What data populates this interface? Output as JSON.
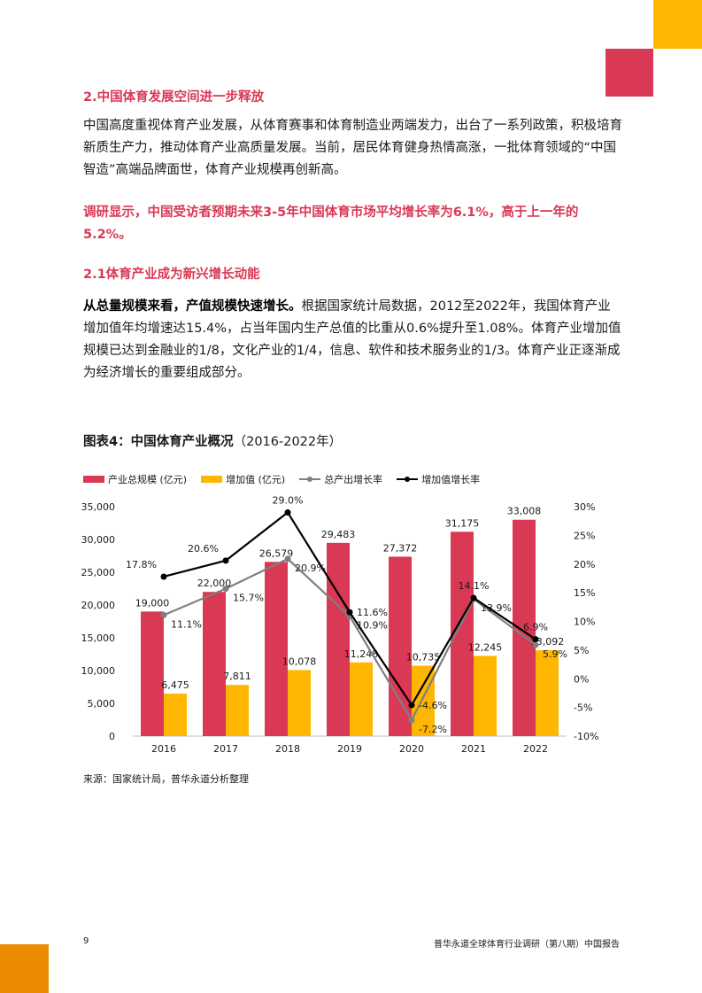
{
  "section": {
    "title": "2.中国体育发展空间进一步释放",
    "intro": "中国高度重视体育产业发展，从体育赛事和体育制造业两端发力，出台了一系列政策，积极培育新质生产力，推动体育产业高质量发展。当前，居民体育健身热情高涨，一批体育领域的“中国智造”高端品牌面世，体育产业规模再创新高。",
    "highlight": "调研显示，中国受访者预期未来3-5年中国体育市场平均增长率为6.1%，高于上一年的5.2%。"
  },
  "subsection": {
    "title": "2.1体育产业成为新兴增长动能",
    "lead_bold": "从总量规模来看，产值规模快速增长。",
    "body": "根据国家统计局数据，2012至2022年，我国体育产业增加值年均增速达15.4%，占当年国内生产总值的比重从0.6%提升至1.08%。体育产业增加值规模已达到金融业的1/8，文化产业的1/4，信息、软件和技术服务业的1/3。体育产业正逐渐成为经济增长的重要组成部分。"
  },
  "figure": {
    "label": "图表4：中国体育产业概况",
    "period": "（2016-2022年）",
    "source": "来源：国家统计局，普华永道分析整理"
  },
  "chart_data": {
    "type": "bar",
    "categories": [
      "2016",
      "2017",
      "2018",
      "2019",
      "2020",
      "2021",
      "2022"
    ],
    "series": [
      {
        "name": "产业总规模 (亿元)",
        "kind": "bar",
        "axis": "left",
        "color": "#D93954",
        "values": [
          19000,
          22000,
          26579,
          29483,
          27372,
          31175,
          33008
        ],
        "labels": [
          "19,000",
          "22,000",
          "26,579",
          "29,483",
          "27,372",
          "31,175",
          "33,008"
        ]
      },
      {
        "name": "增加值 (亿元)",
        "kind": "bar",
        "axis": "left",
        "color": "#FFB600",
        "values": [
          6475,
          7811,
          10078,
          11248,
          10735,
          12245,
          13092
        ],
        "labels": [
          "6,475",
          "7,811",
          "10,078",
          "11,248",
          "10,735",
          "12,245",
          "13,092"
        ]
      },
      {
        "name": "总产出增长率",
        "kind": "line",
        "axis": "right",
        "color": "#7F7F7F",
        "values": [
          11.1,
          15.7,
          20.9,
          10.9,
          -7.2,
          13.9,
          5.9
        ],
        "labels": [
          "11.1%",
          "15.7%",
          "20.9%",
          "10.9%",
          "-7.2%",
          "13.9%",
          "5.9%"
        ]
      },
      {
        "name": "增加值增长率",
        "kind": "line",
        "axis": "right",
        "color": "#000000",
        "values": [
          17.8,
          20.6,
          29.0,
          11.6,
          -4.6,
          14.1,
          6.9
        ],
        "labels": [
          "17.8%",
          "20.6%",
          "29.0%",
          "11.6%",
          "-4.6%",
          "14.1%",
          "6.9%"
        ]
      }
    ],
    "y_left": {
      "min": 0,
      "max": 35000,
      "ticks": [
        "0",
        "5,000",
        "10,000",
        "15,000",
        "20,000",
        "25,000",
        "30,000",
        "35,000"
      ]
    },
    "y_right": {
      "min": -10,
      "max": 30,
      "ticks": [
        "-10%",
        "-5%",
        "0%",
        "5%",
        "10%",
        "15%",
        "20%",
        "25%",
        "30%"
      ]
    },
    "legend_position": "top-left",
    "grid": false
  },
  "footer": {
    "page_number": "9",
    "report_title": "普华永道全球体育行业调研（第八期）中国报告"
  },
  "colors": {
    "pink": "#D93954",
    "yellow": "#FFB600",
    "orange": "#EB8C00",
    "grey_line": "#7F7F7F",
    "black_line": "#000000"
  }
}
